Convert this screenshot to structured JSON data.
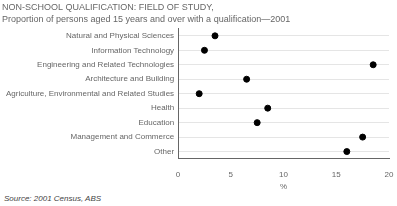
{
  "chart_data": {
    "type": "dot",
    "orientation": "horizontal",
    "title": "NON-SCHOOL QUALIFICATION: FIELD OF STUDY,",
    "subtitle": "Proportion of persons aged 15 years and over with a qualification—2001",
    "categories": [
      "Natural and Physical Sciences",
      "Information Technology",
      "Engineering and Related Technologies",
      "Architecture and Building",
      "Agriculture, Environmental and Related Studies",
      "Health",
      "Education",
      "Management and Commerce",
      "Other"
    ],
    "values": [
      3.5,
      2.5,
      18.5,
      6.5,
      2.0,
      8.5,
      7.5,
      17.5,
      16.0
    ],
    "color": "#000000",
    "xlabel": "%",
    "xlim": [
      0,
      20
    ],
    "xticks": [
      0,
      5,
      10,
      15,
      20
    ],
    "grid": true,
    "annotations": [
      "Source: 2001 Census, ABS"
    ]
  }
}
